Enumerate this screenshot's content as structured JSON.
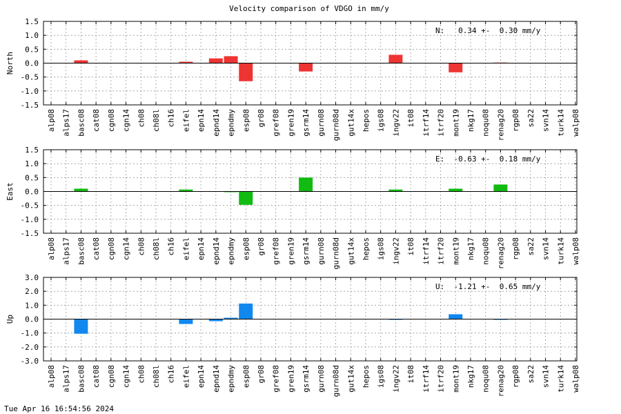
{
  "timestamp": "Tue Apr 16 16:54:56 2024",
  "chart_data": {
    "type": "bar",
    "title": "Velocity comparison of VDGO in mm/y",
    "categories": [
      "alp08",
      "alps17",
      "basc08",
      "cat08",
      "cgn08",
      "cgn14",
      "ch08",
      "ch08l",
      "ch16",
      "eifel",
      "epn14",
      "epnd14",
      "epndmy",
      "esp08",
      "gr08",
      "gref08",
      "gren19",
      "gsrm14",
      "gurn08",
      "gurn08d",
      "gut14x",
      "hepos",
      "igs08",
      "ingv22",
      "it08",
      "itrf14",
      "itrf20",
      "mont19",
      "nkg17",
      "noqu08",
      "renag20",
      "rgp08",
      "sa22",
      "svn14",
      "turk14",
      "walp08"
    ],
    "panels": [
      {
        "ylabel": "North",
        "color": "#ee3333",
        "ylim": [
          -1.5,
          1.5
        ],
        "yticks": [
          "1.5",
          "1.0",
          "0.5",
          "0.0",
          "-0.5",
          "-1.0",
          "-1.5"
        ],
        "stat": "N:   0.34 +-  0.30 mm/y",
        "values": [
          0,
          0,
          0.1,
          0,
          0,
          0,
          0,
          0,
          0,
          0.05,
          0,
          0.17,
          0.25,
          -0.65,
          0,
          0,
          0,
          -0.3,
          0,
          0,
          0,
          0,
          0,
          0.3,
          0,
          0,
          0,
          -0.33,
          0,
          0,
          0.02,
          0,
          0,
          0,
          0,
          0
        ]
      },
      {
        "ylabel": "East",
        "color": "#11bb11",
        "ylim": [
          -1.5,
          1.5
        ],
        "yticks": [
          "1.5",
          "1.0",
          "0.5",
          "0.0",
          "-0.5",
          "-1.0",
          "-1.5"
        ],
        "stat": "E:  -0.63 +-  0.18 mm/y",
        "values": [
          0,
          0,
          0.1,
          0,
          0,
          0,
          0,
          0,
          0,
          0.07,
          0,
          0,
          -0.02,
          -0.48,
          0,
          0,
          0,
          0.5,
          0,
          0,
          0,
          0,
          0,
          0.07,
          0,
          0,
          0,
          0.1,
          0,
          0,
          0.25,
          0,
          0,
          0,
          0,
          0
        ]
      },
      {
        "ylabel": "Up",
        "color": "#1188ee",
        "ylim": [
          -3.0,
          3.0
        ],
        "yticks": [
          "3.0",
          "2.0",
          "1.0",
          "0.0",
          "-1.0",
          "-2.0",
          "-3.0"
        ],
        "stat": "U:  -1.21 +-  0.65 mm/y",
        "values": [
          0,
          0,
          -1.05,
          0,
          0,
          0,
          0,
          0,
          0,
          -0.35,
          0,
          -0.15,
          0.1,
          1.12,
          0,
          0,
          0,
          0,
          0,
          0,
          0,
          0,
          0,
          -0.05,
          0,
          0,
          0,
          0.35,
          0,
          0,
          -0.05,
          0,
          0,
          0,
          0,
          0
        ]
      }
    ],
    "grid": true
  }
}
